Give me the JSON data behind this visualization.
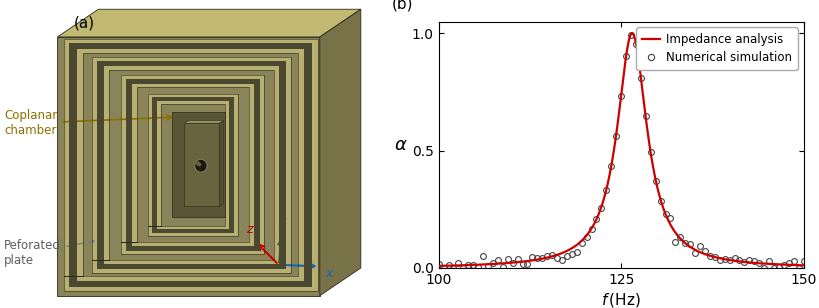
{
  "title_a": "(a)",
  "title_b": "(b)",
  "xlabel": "f (Hz)",
  "ylabel": "α",
  "xlim": [
    100,
    150
  ],
  "ylim": [
    0.0,
    1.05
  ],
  "xticks": [
    100,
    125,
    150
  ],
  "yticks": [
    0.0,
    0.5,
    1.0
  ],
  "resonance_freq": 126.5,
  "damping": 2.5,
  "line_color": "#cc0000",
  "circle_color": "#444444",
  "legend_line": "Impedance analysis",
  "legend_circle": "Numerical simulation",
  "label_coplanar": "Coplanar\nchamber",
  "label_perforated": "Peforated\nplate",
  "arrow_color_coplanar": "#8B7000",
  "axis_x_color": "#1565C0",
  "axis_y_color": "#2e7d32",
  "axis_z_color": "#cc0000",
  "num_circles": 75,
  "body_color": "#8a845a",
  "top_face_color": "#c2ba72",
  "right_face_color": "#787248",
  "channel_light": "#b8b070",
  "channel_dark": "#5a5635",
  "channel_groove": "#4a4830",
  "center_color": "#707248",
  "hole_color": "#1a1810"
}
